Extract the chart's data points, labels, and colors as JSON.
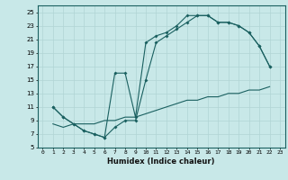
{
  "xlabel": "Humidex (Indice chaleur)",
  "bg_color": "#c8e8e8",
  "line_color": "#1a6060",
  "grid_color": "#b0d4d4",
  "xlim": [
    -0.5,
    23.5
  ],
  "ylim": [
    5,
    26
  ],
  "xticks": [
    0,
    1,
    2,
    3,
    4,
    5,
    6,
    7,
    8,
    9,
    10,
    11,
    12,
    13,
    14,
    15,
    16,
    17,
    18,
    19,
    20,
    21,
    22,
    23
  ],
  "yticks": [
    5,
    7,
    9,
    11,
    13,
    15,
    17,
    19,
    21,
    23,
    25
  ],
  "line_upper_x": [
    1,
    2,
    3,
    4,
    5,
    6,
    7,
    8,
    9,
    10,
    11,
    12,
    13,
    14,
    15,
    16,
    17,
    18,
    19,
    20,
    21,
    22
  ],
  "line_upper_y": [
    11.0,
    9.5,
    8.5,
    7.5,
    7.0,
    6.5,
    16.0,
    16.0,
    9.5,
    20.5,
    21.5,
    22.0,
    23.0,
    24.5,
    24.5,
    24.5,
    23.5,
    23.5,
    23.0,
    22.0,
    20.0,
    17.0
  ],
  "line_mid_x": [
    1,
    2,
    3,
    4,
    5,
    6,
    7,
    8,
    9,
    10,
    11,
    12,
    13,
    14,
    15,
    16,
    17,
    18,
    19,
    20,
    21,
    22
  ],
  "line_mid_y": [
    11.0,
    9.5,
    8.5,
    7.5,
    7.0,
    6.5,
    8.0,
    9.0,
    9.0,
    15.0,
    20.5,
    21.5,
    22.5,
    23.5,
    24.5,
    24.5,
    23.5,
    23.5,
    23.0,
    22.0,
    20.0,
    17.0
  ],
  "line_lower_x": [
    1,
    2,
    3,
    4,
    5,
    6,
    7,
    8,
    9,
    10,
    11,
    12,
    13,
    14,
    15,
    16,
    17,
    18,
    19,
    20,
    21,
    22
  ],
  "line_lower_y": [
    8.5,
    8.0,
    8.5,
    8.5,
    8.5,
    9.0,
    9.0,
    9.5,
    9.5,
    10.0,
    10.5,
    11.0,
    11.5,
    12.0,
    12.0,
    12.5,
    12.5,
    13.0,
    13.0,
    13.5,
    13.5,
    14.0
  ]
}
